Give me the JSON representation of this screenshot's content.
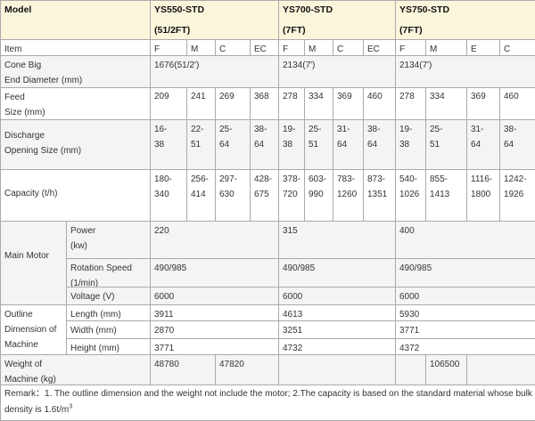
{
  "header": {
    "model_label": "Model",
    "models": [
      {
        "name": "YS550-STD",
        "size": "(51/2FT)"
      },
      {
        "name": "YS700-STD",
        "size": "(7FT)"
      },
      {
        "name": "YS750-STD",
        "size": "(7FT)"
      }
    ]
  },
  "item_row": {
    "label": "Item",
    "values": [
      "F",
      "M",
      "C",
      "EC",
      "F",
      "M",
      "C",
      "EC",
      "F",
      "M",
      "E",
      "C"
    ]
  },
  "cone_row": {
    "label": "Cone Big\nEnd Diameter (mm)",
    "values": [
      "1676(51/2')",
      "2134(7')",
      "2134(7')"
    ]
  },
  "feed_row": {
    "label": "Feed\nSize (mm)",
    "values": [
      "209",
      "241",
      "269",
      "368",
      "278",
      "334",
      "369",
      "460",
      "278",
      "334",
      "369",
      "460"
    ]
  },
  "discharge_row": {
    "label": "Discharge\nOpening Size (mm)",
    "values": [
      "16-\n38",
      "22-\n51",
      "25-\n64",
      "38-\n64",
      "19-\n38",
      "25-\n51",
      "31-\n64",
      "38-\n64",
      "19-\n38",
      "25-\n51",
      "31-\n64",
      "38-\n64"
    ]
  },
  "capacity_row": {
    "label": "Capacity (t/h)",
    "values": [
      "180-\n340",
      "256-\n414",
      "297-\n630",
      "428-\n675",
      "378-\n720",
      "603-\n990",
      "783-\n1260",
      "873-\n1351",
      "540-\n1026",
      "855-\n1413",
      "1116-\n1800",
      "1242-\n1926"
    ]
  },
  "main_motor": {
    "label": "Main Motor",
    "rows": [
      {
        "label": "Power\n(kw)",
        "values": [
          "220",
          "315",
          "400"
        ]
      },
      {
        "label": "Rotation Speed\n(1/min)",
        "values": [
          "490/985",
          "490/985",
          "490/985"
        ]
      },
      {
        "label": "Voltage (V)",
        "values": [
          "6000",
          "6000",
          "6000"
        ]
      }
    ]
  },
  "outline": {
    "label": "Outline\nDimension of\nMachine",
    "rows": [
      {
        "label": "Length (mm)",
        "values": [
          "3911",
          "4613",
          "5930"
        ]
      },
      {
        "label": "Width (mm)",
        "values": [
          "2870",
          "3251",
          "3771"
        ]
      },
      {
        "label": "Height (mm)",
        "values": [
          "3771",
          "4732",
          "4372"
        ]
      }
    ]
  },
  "weight_row": {
    "label": "Weight of\nMachine (kg)",
    "values": [
      "48780",
      "47820",
      "106500"
    ]
  },
  "remark": {
    "text": "Remark：1. The outline dimension and the weight not include the motor; 2.The capacity is based on the standard material whose bulk density is 1.6t/m",
    "sup": "3"
  }
}
